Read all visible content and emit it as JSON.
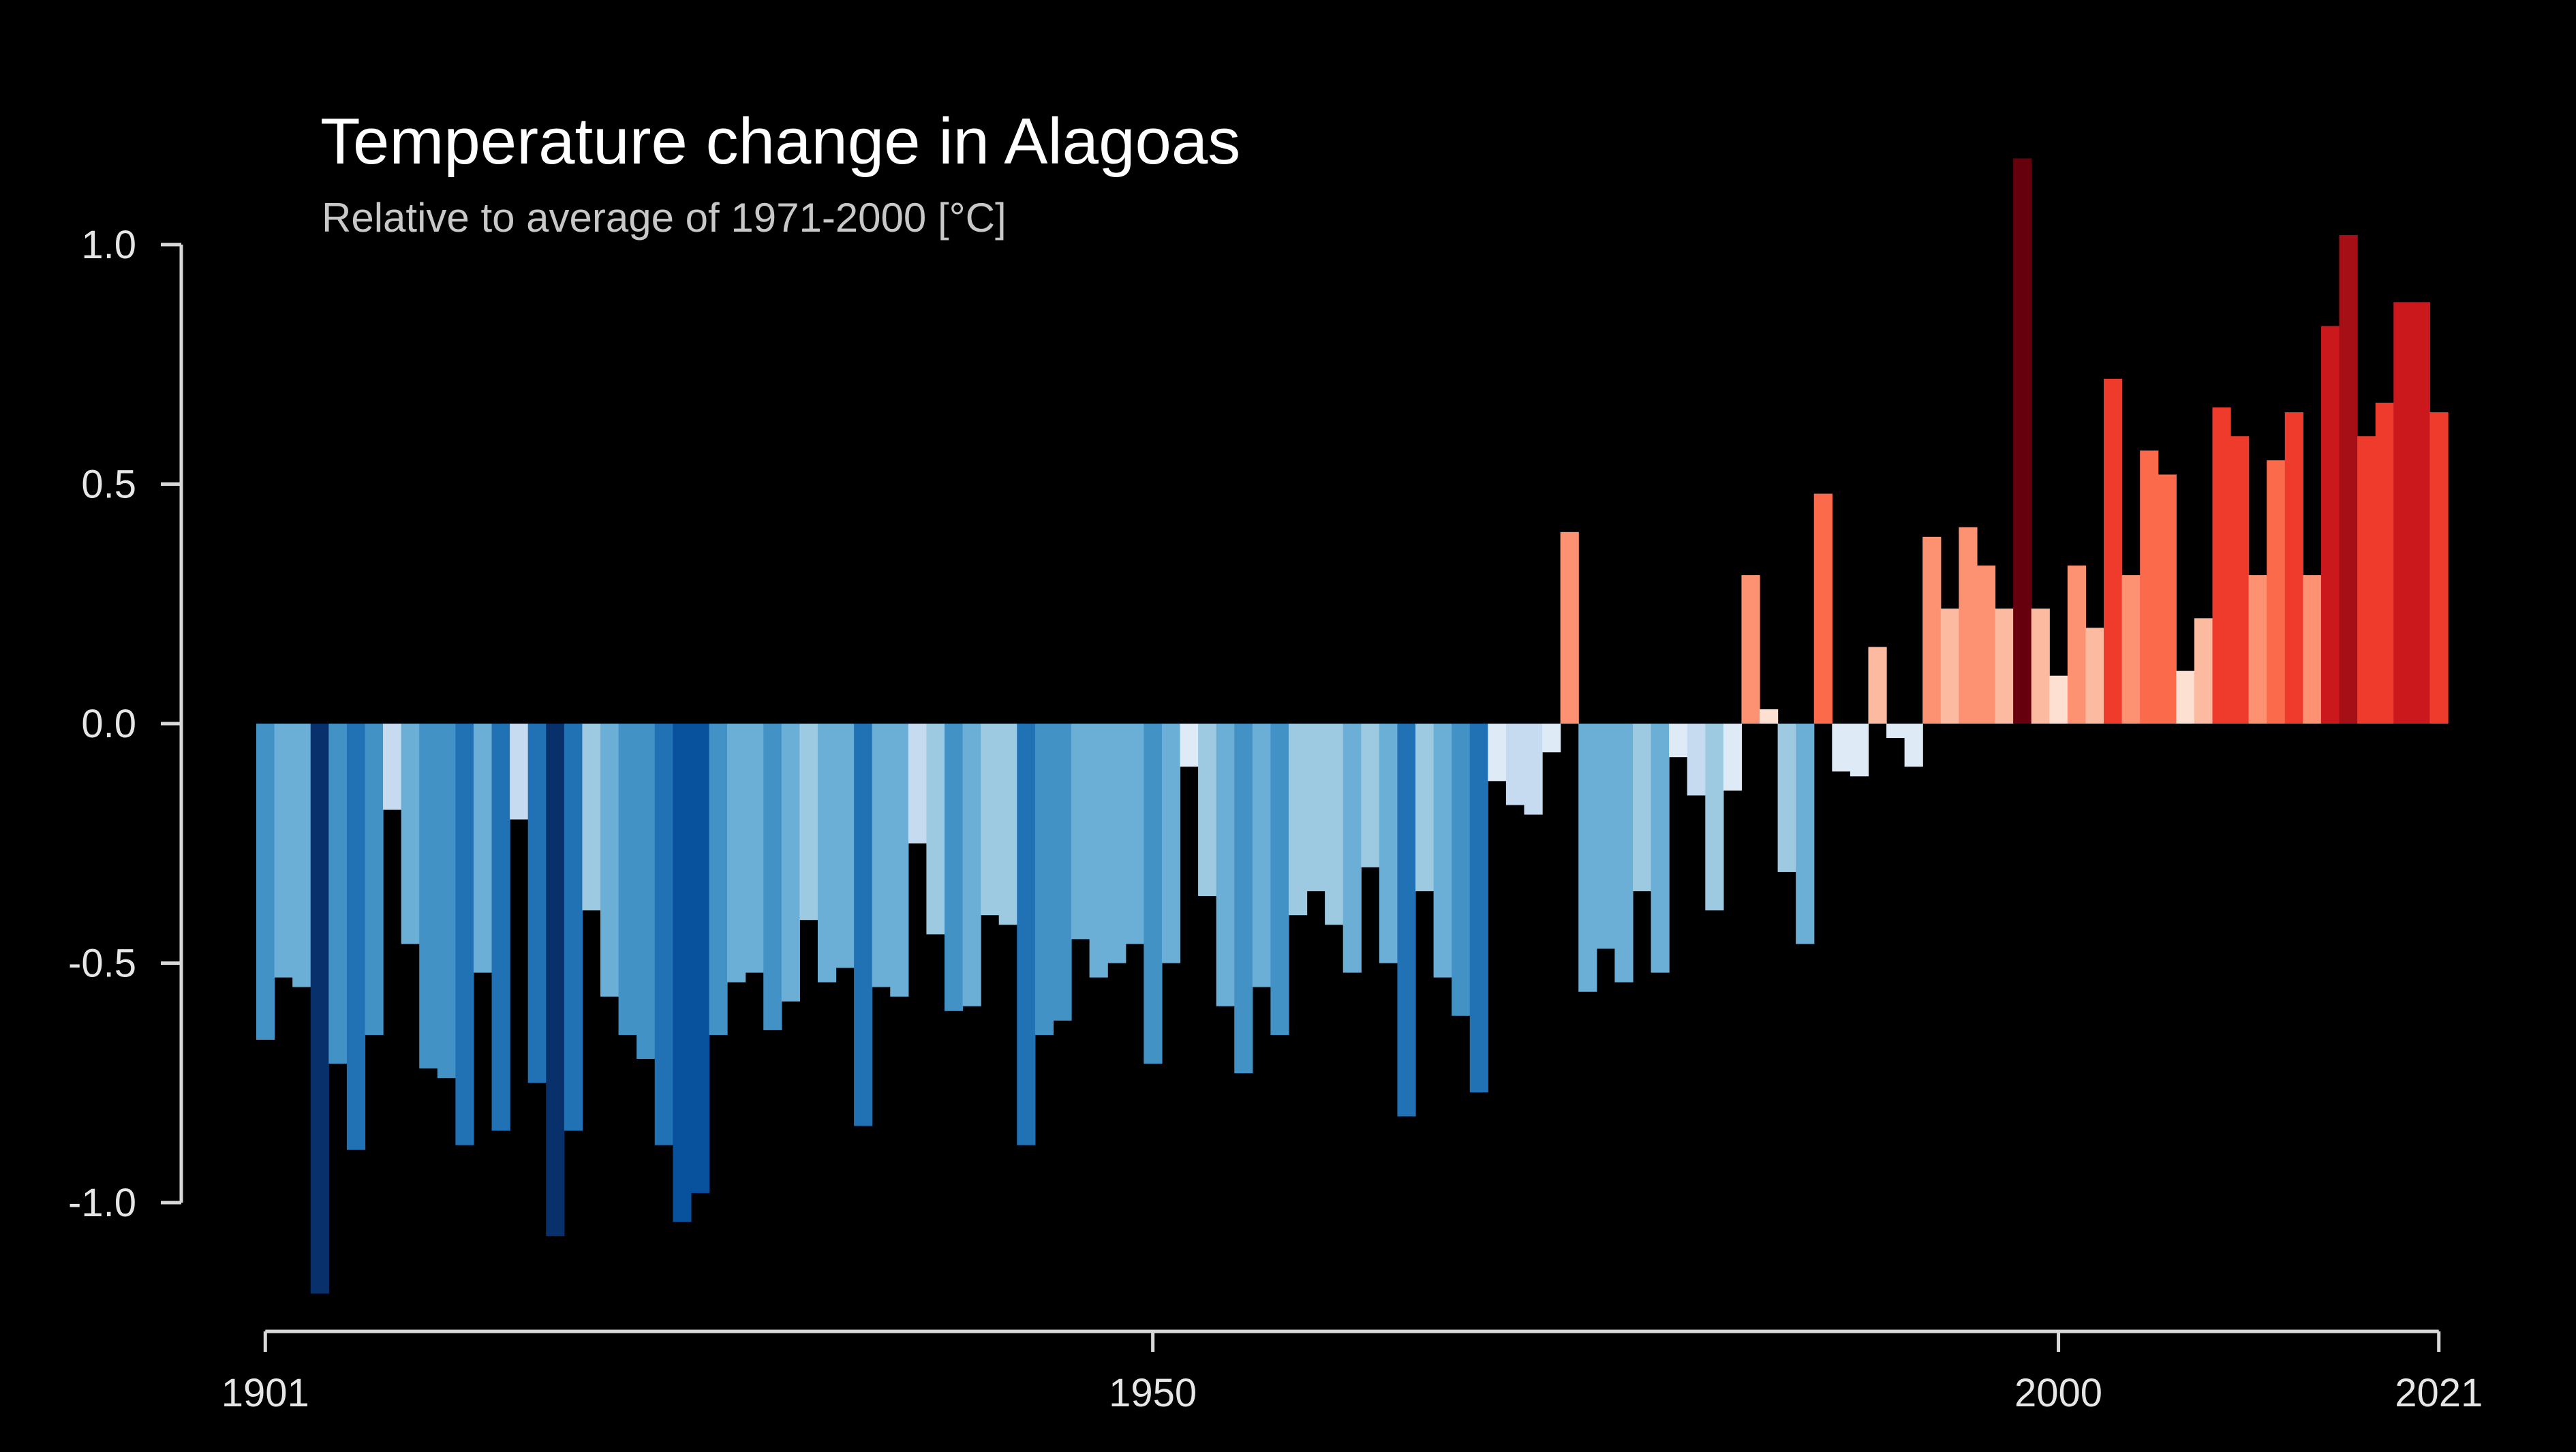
{
  "chart_data": {
    "type": "bar",
    "title": "Temperature change in Alagoas",
    "subtitle": "Relative to average of 1971-2000  [°C]",
    "xlabel": "",
    "ylabel": "",
    "x_start": 1901,
    "x_end": 2021,
    "ylim": [
      -1.25,
      1.2
    ],
    "x_ticks": [
      "1901",
      "1950",
      "2000",
      "2021"
    ],
    "y_ticks": [
      "1.0",
      "0.5",
      "0.0",
      "-0.5",
      "-1.0"
    ],
    "grid": false,
    "legend": "none",
    "color_scale": {
      "negative": [
        "#deebf7",
        "#c6dbef",
        "#9ecae1",
        "#6baed6",
        "#4292c6",
        "#2171b5",
        "#08519c",
        "#08306b"
      ],
      "positive": [
        "#fee0d2",
        "#fcbba1",
        "#fc9272",
        "#fb6a4a",
        "#ef3b2c",
        "#cb181d",
        "#a50f15",
        "#67000d"
      ]
    },
    "years": [
      1901,
      1902,
      1903,
      1904,
      1905,
      1906,
      1907,
      1908,
      1909,
      1910,
      1911,
      1912,
      1913,
      1914,
      1915,
      1916,
      1917,
      1918,
      1919,
      1920,
      1921,
      1922,
      1923,
      1924,
      1925,
      1926,
      1927,
      1928,
      1929,
      1930,
      1931,
      1932,
      1933,
      1934,
      1935,
      1936,
      1937,
      1938,
      1939,
      1940,
      1941,
      1942,
      1943,
      1944,
      1945,
      1946,
      1947,
      1948,
      1949,
      1950,
      1951,
      1952,
      1953,
      1954,
      1955,
      1956,
      1957,
      1958,
      1959,
      1960,
      1961,
      1962,
      1963,
      1964,
      1965,
      1966,
      1967,
      1968,
      1969,
      1970,
      1971,
      1972,
      1973,
      1974,
      1975,
      1976,
      1977,
      1978,
      1979,
      1980,
      1981,
      1982,
      1983,
      1984,
      1985,
      1986,
      1987,
      1988,
      1989,
      1990,
      1991,
      1992,
      1993,
      1994,
      1995,
      1996,
      1997,
      1998,
      1999,
      2000,
      2001,
      2002,
      2003,
      2004,
      2005,
      2006,
      2007,
      2008,
      2009,
      2010,
      2011,
      2012,
      2013,
      2014,
      2015,
      2016,
      2017,
      2018,
      2019,
      2020,
      2021
    ],
    "values": [
      -0.66,
      -0.53,
      -0.55,
      -1.19,
      -0.71,
      -0.89,
      -0.65,
      -0.18,
      -0.46,
      -0.72,
      -0.74,
      -0.88,
      -0.52,
      -0.85,
      -0.2,
      -0.75,
      -1.07,
      -0.85,
      -0.39,
      -0.57,
      -0.65,
      -0.7,
      -0.88,
      -1.04,
      -0.98,
      -0.65,
      -0.54,
      -0.52,
      -0.64,
      -0.58,
      -0.41,
      -0.54,
      -0.51,
      -0.84,
      -0.55,
      -0.57,
      -0.25,
      -0.44,
      -0.6,
      -0.59,
      -0.4,
      -0.42,
      -0.88,
      -0.65,
      -0.62,
      -0.45,
      -0.53,
      -0.5,
      -0.46,
      -0.71,
      -0.5,
      -0.09,
      -0.36,
      -0.59,
      -0.73,
      -0.55,
      -0.65,
      -0.4,
      -0.35,
      -0.42,
      -0.52,
      -0.3,
      -0.5,
      -0.82,
      -0.35,
      -0.53,
      -0.61,
      -0.77,
      -0.12,
      -0.17,
      -0.19,
      -0.06,
      0.4,
      -0.56,
      -0.47,
      -0.54,
      -0.35,
      -0.52,
      -0.07,
      -0.15,
      -0.39,
      -0.14,
      0.31,
      0.03,
      -0.31,
      -0.46,
      0.48,
      -0.1,
      -0.11,
      0.16,
      -0.03,
      -0.09,
      0.39,
      0.24,
      0.41,
      0.33,
      0.24,
      1.18,
      0.24,
      0.1,
      0.33,
      0.2,
      0.72,
      0.31,
      0.57,
      0.52,
      0.11,
      0.22,
      0.66,
      0.6,
      0.31,
      0.55,
      0.65,
      0.31,
      0.83,
      1.02,
      0.6,
      0.67,
      0.88,
      0.88,
      0.65
    ]
  }
}
